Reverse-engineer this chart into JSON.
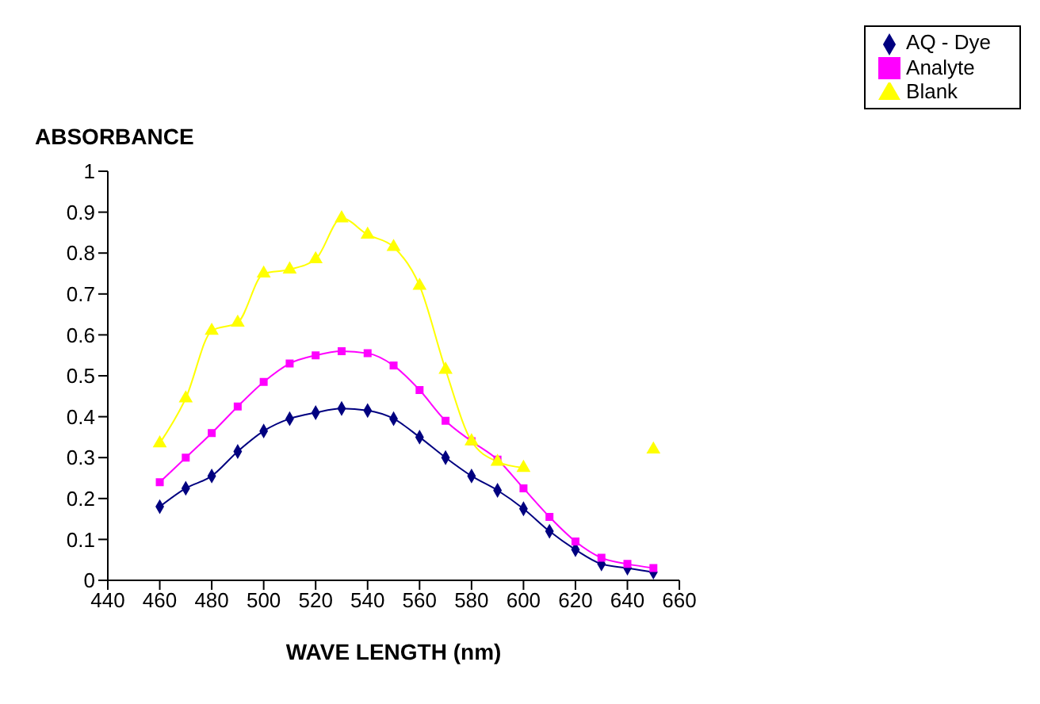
{
  "chart_data": {
    "type": "line",
    "xlabel": "WAVE LENGTH (nm)",
    "ylabel": "ABSORBANCE",
    "x": [
      460,
      470,
      480,
      490,
      500,
      510,
      520,
      530,
      540,
      550,
      560,
      570,
      580,
      590,
      600,
      610,
      620,
      630,
      640,
      650
    ],
    "xlim": [
      440,
      660
    ],
    "xticks": [
      440,
      460,
      480,
      500,
      520,
      540,
      560,
      580,
      600,
      620,
      640,
      660
    ],
    "ylim": [
      0,
      1
    ],
    "yticks": [
      0,
      0.1,
      0.2,
      0.3,
      0.4,
      0.5,
      0.6,
      0.7,
      0.8,
      0.9,
      1
    ],
    "grid": false,
    "legend": "top right",
    "series": [
      {
        "name": "AQ - Dye",
        "color": "#000080",
        "marker": "diamond",
        "values": [
          0.18,
          0.225,
          0.255,
          0.315,
          0.365,
          0.395,
          0.41,
          0.42,
          0.415,
          0.395,
          0.35,
          0.3,
          0.255,
          0.22,
          0.175,
          0.12,
          0.075,
          0.04,
          0.03,
          0.02
        ]
      },
      {
        "name": "Analyte",
        "color": "#ff00ff",
        "marker": "square",
        "values": [
          0.24,
          0.3,
          0.36,
          0.425,
          0.485,
          0.53,
          0.55,
          0.56,
          0.555,
          0.525,
          0.465,
          0.39,
          0.34,
          0.295,
          0.225,
          0.155,
          0.095,
          0.055,
          0.04,
          0.03
        ]
      },
      {
        "name": "Blank",
        "color": "#ffff00",
        "marker": "triangle",
        "values": [
          0.335,
          0.445,
          0.61,
          0.63,
          0.75,
          0.76,
          0.785,
          0.885,
          0.845,
          0.815,
          0.72,
          0.515,
          0.34,
          0.29,
          0.275,
          null,
          null,
          null,
          null,
          0.32
        ]
      }
    ]
  }
}
